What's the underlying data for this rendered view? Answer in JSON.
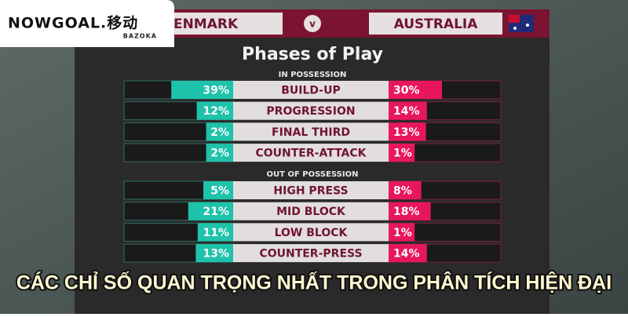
{
  "logo": {
    "brand": "NOWGOAL.移动",
    "sub": "BAZOKA"
  },
  "header": {
    "home": "DENMARK",
    "versus": "v",
    "away": "AUSTRALIA"
  },
  "chart_data": [
    {
      "type": "diverging-bar",
      "title": "Phases of Play",
      "subtitle": "IN POSSESSION",
      "categories": [
        "BUILD-UP",
        "PROGRESSION",
        "FINAL THIRD",
        "COUNTER-ATTACK"
      ],
      "series": [
        {
          "color": "#1fc2aa",
          "values": [
            39,
            12,
            2,
            2
          ],
          "value_labels": [
            "39%",
            "12%",
            "2%",
            "2%"
          ]
        },
        {
          "color": "#e8175d",
          "values": [
            30,
            14,
            13,
            1
          ],
          "value_labels": [
            "30%",
            "14%",
            "13%",
            "1%"
          ]
        }
      ]
    },
    {
      "type": "diverging-bar",
      "subtitle": "OUT OF POSSESSION",
      "categories": [
        "HIGH PRESS",
        "MID BLOCK",
        "LOW BLOCK",
        "COUNTER-PRESS"
      ],
      "series": [
        {
          "color": "#1fc2aa",
          "values": [
            5,
            21,
            11,
            13
          ],
          "value_labels": [
            "5%",
            "21%",
            "11%",
            "13%"
          ]
        },
        {
          "color": "#e8175d",
          "values": [
            8,
            18,
            1,
            14
          ],
          "value_labels": [
            "8%",
            "18%",
            "1%",
            "14%"
          ]
        }
      ]
    }
  ],
  "caption": "CÁC CHỈ SỐ QUAN TRỌNG NHẤT TRONG PHÂN TÍCH HIỆN ĐẠI"
}
